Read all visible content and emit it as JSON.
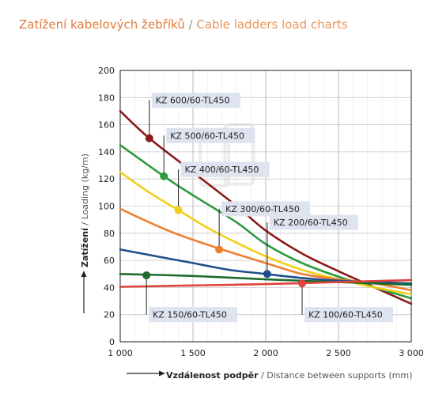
{
  "title": {
    "cz": "Zatížení kabelových žebříků",
    "sep": " / ",
    "en": "Cable ladders load charts"
  },
  "chart_data": {
    "type": "line",
    "xlabel_cz": "Vzdálenost podpěr",
    "xlabel_en": " / Distance between supports (mm)",
    "ylabel_cz": "Zatížení",
    "ylabel_en": "  / Loading (kg/m)",
    "xlim": [
      1000,
      3000
    ],
    "ylim": [
      0,
      200
    ],
    "xticks": [
      1000,
      1500,
      2000,
      2500,
      3000
    ],
    "xtick_labels": [
      "1 000",
      "1 500",
      "2 000",
      "2 500",
      "3 000"
    ],
    "yticks": [
      0,
      20,
      40,
      60,
      80,
      100,
      120,
      140,
      160,
      180,
      200
    ],
    "grid": true,
    "series": [
      {
        "name": "KZ 600/60-TL450",
        "color": "#8b1a1a",
        "x": [
          1000,
          1200,
          1500,
          1800,
          2000,
          2250,
          2500,
          2750,
          3000
        ],
        "y": [
          170,
          150,
          125,
          100,
          82,
          65,
          52,
          40,
          28
        ],
        "marker": [
          1200,
          150
        ],
        "label_anchor": [
          1200,
          178
        ]
      },
      {
        "name": "KZ 500/60-TL450",
        "color": "#2e9a3e",
        "x": [
          1000,
          1300,
          1500,
          1800,
          2000,
          2250,
          2500,
          2750,
          3000
        ],
        "y": [
          145,
          122,
          108,
          88,
          72,
          58,
          48,
          40,
          32
        ],
        "marker": [
          1300,
          122
        ],
        "label_anchor": [
          1300,
          152
        ]
      },
      {
        "name": "KZ 400/60-TL450",
        "color": "#f2cf1b",
        "x": [
          1000,
          1200,
          1400,
          1600,
          1800,
          2000,
          2250,
          2500,
          2750,
          3000
        ],
        "y": [
          125,
          110,
          97,
          84,
          73,
          63,
          53,
          46,
          40,
          35
        ],
        "marker": [
          1400,
          97
        ],
        "label_anchor": [
          1400,
          127
        ]
      },
      {
        "name": "KZ 300/60-TL450",
        "color": "#ec8132",
        "x": [
          1000,
          1200,
          1400,
          1700,
          2000,
          2250,
          2500,
          2750,
          3000
        ],
        "y": [
          98,
          88,
          79,
          68,
          58,
          50,
          46,
          43,
          38
        ],
        "marker": [
          1680,
          68
        ],
        "label_anchor": [
          1680,
          98
        ]
      },
      {
        "name": "KZ 200/60-TL450",
        "color": "#1f4e8c",
        "x": [
          1000,
          1250,
          1500,
          1750,
          2000,
          2250,
          2500,
          2750,
          3000
        ],
        "y": [
          68,
          63,
          58,
          53,
          50,
          47,
          45,
          44,
          43
        ],
        "marker": [
          2010,
          50
        ],
        "label_anchor": [
          2010,
          88
        ]
      },
      {
        "name": "KZ 150/60-TL450",
        "color": "#1d6b2e",
        "x": [
          1000,
          1500,
          2000,
          2500,
          3000
        ],
        "y": [
          50,
          48.5,
          46,
          44,
          42
        ],
        "marker": [
          1180,
          49
        ],
        "label_anchor": [
          1180,
          20
        ]
      },
      {
        "name": "KZ 100/60-TL450",
        "color": "#e0433c",
        "x": [
          1000,
          1500,
          2000,
          2500,
          3000
        ],
        "y": [
          40.5,
          41.5,
          42.5,
          44,
          45.5
        ],
        "marker": [
          2250,
          43
        ],
        "label_anchor": [
          2250,
          20
        ]
      }
    ]
  }
}
